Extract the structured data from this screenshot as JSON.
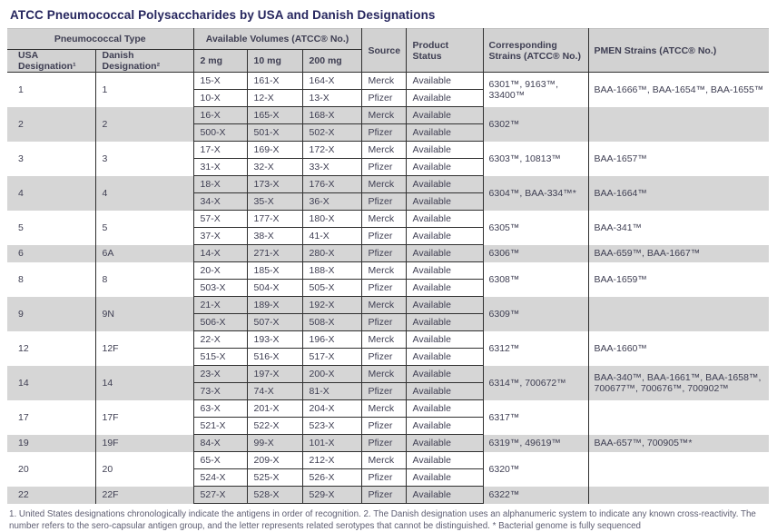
{
  "title": "ATCC Pneumococcal Polysaccharides by USA and Danish Designations",
  "header": {
    "pneumococcal_type": "Pneumococcal Type",
    "usa_designation": "USA Designation¹",
    "danish_designation": "Danish Designation²",
    "available_volumes": "Available Volumes (ATCC® No.)",
    "mg2": "2 mg",
    "mg10": "10 mg",
    "mg200": "200 mg",
    "source": "Source",
    "product_status": "Product Status",
    "corresponding_strains": "Corresponding Strains (ATCC® No.)",
    "pmen_strains": "PMEN Strains (ATCC® No.)"
  },
  "groups": [
    {
      "usa": "1",
      "danish": "1",
      "shaded": false,
      "corresponding": "6301™, 9163™, 33400™",
      "pmen": "BAA-1666™, BAA-1654™, BAA-1655™",
      "rows": [
        {
          "mg2": "15-X",
          "mg10": "161-X",
          "mg200": "164-X",
          "source": "Merck",
          "status": "Available"
        },
        {
          "mg2": "10-X",
          "mg10": "12-X",
          "mg200": "13-X",
          "source": "Pfizer",
          "status": "Available"
        }
      ]
    },
    {
      "usa": "2",
      "danish": "2",
      "shaded": true,
      "corresponding": "6302™",
      "pmen": "",
      "rows": [
        {
          "mg2": "16-X",
          "mg10": "165-X",
          "mg200": "168-X",
          "source": "Merck",
          "status": "Available"
        },
        {
          "mg2": "500-X",
          "mg10": "501-X",
          "mg200": "502-X",
          "source": "Pfizer",
          "status": "Available"
        }
      ]
    },
    {
      "usa": "3",
      "danish": "3",
      "shaded": false,
      "corresponding": "6303™, 10813™",
      "pmen": "BAA-1657™",
      "rows": [
        {
          "mg2": "17-X",
          "mg10": "169-X",
          "mg200": "172-X",
          "source": "Merck",
          "status": "Available"
        },
        {
          "mg2": "31-X",
          "mg10": "32-X",
          "mg200": "33-X",
          "source": "Pfizer",
          "status": "Available"
        }
      ]
    },
    {
      "usa": "4",
      "danish": "4",
      "shaded": true,
      "corresponding": "6304™, BAA-334™*",
      "pmen": "BAA-1664™",
      "rows": [
        {
          "mg2": "18-X",
          "mg10": "173-X",
          "mg200": "176-X",
          "source": "Merck",
          "status": "Available"
        },
        {
          "mg2": "34-X",
          "mg10": "35-X",
          "mg200": "36-X",
          "source": "Pfizer",
          "status": "Available"
        }
      ]
    },
    {
      "usa": "5",
      "danish": "5",
      "shaded": false,
      "corresponding": "6305™",
      "pmen": "BAA-341™",
      "rows": [
        {
          "mg2": "57-X",
          "mg10": "177-X",
          "mg200": "180-X",
          "source": "Merck",
          "status": "Available"
        },
        {
          "mg2": "37-X",
          "mg10": "38-X",
          "mg200": "41-X",
          "source": "Pfizer",
          "status": "Available"
        }
      ]
    },
    {
      "usa": "6",
      "danish": "6A",
      "shaded": true,
      "corresponding": "6306™",
      "pmen": "BAA-659™, BAA-1667™",
      "rows": [
        {
          "mg2": "14-X",
          "mg10": "271-X",
          "mg200": "280-X",
          "source": "Pfizer",
          "status": "Available"
        }
      ]
    },
    {
      "usa": "8",
      "danish": "8",
      "shaded": false,
      "corresponding": "6308™",
      "pmen": "BAA-1659™",
      "rows": [
        {
          "mg2": "20-X",
          "mg10": "185-X",
          "mg200": "188-X",
          "source": "Merck",
          "status": "Available"
        },
        {
          "mg2": "503-X",
          "mg10": "504-X",
          "mg200": "505-X",
          "source": "Pfizer",
          "status": "Available"
        }
      ]
    },
    {
      "usa": "9",
      "danish": "9N",
      "shaded": true,
      "corresponding": "6309™",
      "pmen": "",
      "rows": [
        {
          "mg2": "21-X",
          "mg10": "189-X",
          "mg200": "192-X",
          "source": "Merck",
          "status": "Available"
        },
        {
          "mg2": "506-X",
          "mg10": "507-X",
          "mg200": "508-X",
          "source": "Pfizer",
          "status": "Available"
        }
      ]
    },
    {
      "usa": "12",
      "danish": "12F",
      "shaded": false,
      "corresponding": "6312™",
      "pmen": "BAA-1660™",
      "rows": [
        {
          "mg2": "22-X",
          "mg10": "193-X",
          "mg200": "196-X",
          "source": "Merck",
          "status": "Available"
        },
        {
          "mg2": "515-X",
          "mg10": "516-X",
          "mg200": "517-X",
          "source": "Pfizer",
          "status": "Available"
        }
      ]
    },
    {
      "usa": "14",
      "danish": "14",
      "shaded": true,
      "corresponding": "6314™, 700672™",
      "pmen": "BAA-340™, BAA-1661™, BAA-1658™, 700677™, 700676™, 700902™",
      "rows": [
        {
          "mg2": "23-X",
          "mg10": "197-X",
          "mg200": "200-X",
          "source": "Merck",
          "status": "Available"
        },
        {
          "mg2": "73-X",
          "mg10": "74-X",
          "mg200": "81-X",
          "source": "Pfizer",
          "status": "Available"
        }
      ]
    },
    {
      "usa": "17",
      "danish": "17F",
      "shaded": false,
      "corresponding": "6317™",
      "pmen": "",
      "rows": [
        {
          "mg2": "63-X",
          "mg10": "201-X",
          "mg200": "204-X",
          "source": "Merck",
          "status": "Available"
        },
        {
          "mg2": "521-X",
          "mg10": "522-X",
          "mg200": "523-X",
          "source": "Pfizer",
          "status": "Available"
        }
      ]
    },
    {
      "usa": "19",
      "danish": "19F",
      "shaded": true,
      "corresponding": "6319™, 49619™",
      "pmen": "BAA-657™, 700905™*",
      "rows": [
        {
          "mg2": "84-X",
          "mg10": "99-X",
          "mg200": "101-X",
          "source": "Pfizer",
          "status": "Available"
        }
      ]
    },
    {
      "usa": "20",
      "danish": "20",
      "shaded": false,
      "corresponding": "6320™",
      "pmen": "",
      "rows": [
        {
          "mg2": "65-X",
          "mg10": "209-X",
          "mg200": "212-X",
          "source": "Merck",
          "status": "Available"
        },
        {
          "mg2": "524-X",
          "mg10": "525-X",
          "mg200": "526-X",
          "source": "Pfizer",
          "status": "Available"
        }
      ]
    },
    {
      "usa": "22",
      "danish": "22F",
      "shaded": true,
      "corresponding": "6322™",
      "pmen": "",
      "rows": [
        {
          "mg2": "527-X",
          "mg10": "528-X",
          "mg200": "529-X",
          "source": "Pfizer",
          "status": "Available"
        }
      ]
    }
  ],
  "footnotes": [
    "1. United States designations chronologically indicate the antigens in order of recognition. 2. The Danish designation uses an alphanumeric system to indicate any known cross-reactivity. The",
    "number refers to the sero-capsular antigen group, and the letter represents related serotypes that  cannot be distinguished. * Bacterial genome is fully sequenced"
  ],
  "colors": {
    "title_text": "#26265E",
    "cell_text": "#3E3E52",
    "header_background": "#D2D2D2",
    "shaded_row_background": "#D6D6D6",
    "grid_border": "#303030",
    "footnote_text": "#5E5E72"
  }
}
